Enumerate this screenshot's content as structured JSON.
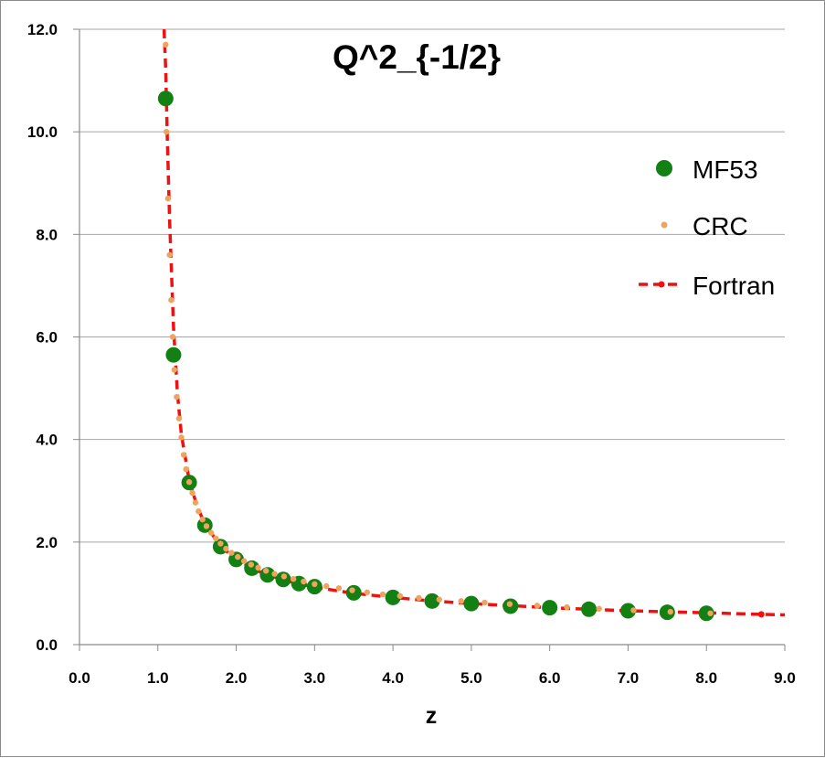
{
  "chart_data": {
    "type": "scatter",
    "title": "Q^2_{-1/2}",
    "xlabel": "z",
    "ylabel": "",
    "xlim": [
      0,
      9
    ],
    "ylim": [
      0,
      12
    ],
    "xticks": [
      "0.0",
      "1.0",
      "2.0",
      "3.0",
      "4.0",
      "5.0",
      "6.0",
      "7.0",
      "8.0",
      "9.0"
    ],
    "yticks": [
      "0.0",
      "2.0",
      "4.0",
      "6.0",
      "8.0",
      "10.0",
      "12.0"
    ],
    "grid": "horizontal",
    "legend_position": "right",
    "colors": {
      "MF53": "#128012",
      "CRC": "#f0a35e",
      "Fortran": "#ee1111"
    },
    "series": [
      {
        "name": "MF53",
        "style": "large-dots",
        "x": [
          1.1,
          1.2,
          1.4,
          1.6,
          1.8,
          2.0,
          2.2,
          2.4,
          2.6,
          2.8,
          3.0,
          3.5,
          4.0,
          4.5,
          5.0,
          5.5,
          6.0,
          6.5,
          7.0,
          7.5,
          8.0
        ],
        "y": [
          10.65,
          5.65,
          3.16,
          2.33,
          1.91,
          1.66,
          1.49,
          1.36,
          1.27,
          1.19,
          1.13,
          1.01,
          0.92,
          0.85,
          0.8,
          0.75,
          0.72,
          0.69,
          0.66,
          0.63,
          0.61
        ]
      },
      {
        "name": "CRC",
        "style": "small-dots",
        "x": [
          1.1,
          1.11,
          1.13,
          1.15,
          1.17,
          1.19,
          1.21,
          1.24,
          1.27,
          1.3,
          1.33,
          1.36,
          1.4,
          1.44,
          1.48,
          1.52,
          1.57,
          1.62,
          1.68,
          1.74,
          1.8,
          1.87,
          1.94,
          2.02,
          2.1,
          2.19,
          2.28,
          2.38,
          2.49,
          2.61,
          2.73,
          2.86,
          3.0,
          3.15,
          3.31,
          3.48,
          3.67,
          3.87,
          4.09,
          4.33,
          4.59,
          4.87,
          5.17,
          5.49,
          5.84,
          6.22,
          6.63,
          7.07,
          7.54,
          8.05
        ],
        "y": [
          11.7,
          10.0,
          8.7,
          7.6,
          6.72,
          6.0,
          5.36,
          4.83,
          4.41,
          4.04,
          3.7,
          3.42,
          3.17,
          2.96,
          2.77,
          2.6,
          2.44,
          2.31,
          2.18,
          2.07,
          1.97,
          1.87,
          1.79,
          1.71,
          1.63,
          1.56,
          1.5,
          1.44,
          1.38,
          1.33,
          1.28,
          1.23,
          1.18,
          1.14,
          1.1,
          1.06,
          1.02,
          0.98,
          0.95,
          0.91,
          0.88,
          0.85,
          0.82,
          0.79,
          0.76,
          0.73,
          0.7,
          0.67,
          0.64,
          0.61
        ]
      },
      {
        "name": "Fortran",
        "style": "dashed-line",
        "x": [
          1.08,
          1.1,
          1.12,
          1.15,
          1.2,
          1.25,
          1.3,
          1.4,
          1.5,
          1.6,
          1.8,
          2.0,
          2.3,
          2.6,
          3.0,
          3.5,
          4.0,
          4.5,
          5.0,
          5.5,
          6.0,
          6.5,
          7.0,
          7.5,
          8.0,
          8.5,
          8.7,
          9.0
        ],
        "y": [
          12.0,
          11.2,
          9.9,
          8.3,
          6.2,
          4.9,
          4.1,
          3.2,
          2.7,
          2.35,
          1.92,
          1.66,
          1.42,
          1.26,
          1.12,
          1.0,
          0.92,
          0.85,
          0.8,
          0.76,
          0.72,
          0.69,
          0.66,
          0.64,
          0.62,
          0.6,
          0.59,
          0.58
        ]
      }
    ],
    "fortran_markers": {
      "x": [
        8.7
      ],
      "y": [
        0.59
      ]
    }
  }
}
